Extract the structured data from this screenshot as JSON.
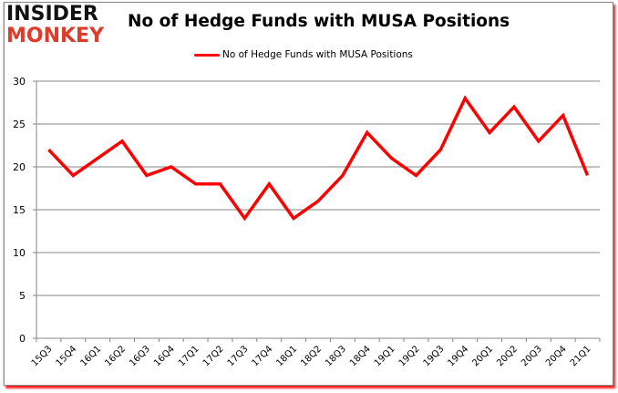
{
  "brand": {
    "line1": "INSIDER",
    "line2": "MONKEY",
    "line1_color": "#111111",
    "line2_color": "#e03a28"
  },
  "header": {
    "title": "No of Hedge Funds with MUSA Positions"
  },
  "legend": {
    "label": "No of Hedge Funds with MUSA Positions",
    "color": "#ff0000"
  },
  "chart_data": {
    "type": "line",
    "title": "No of Hedge Funds with MUSA Positions",
    "xlabel": "",
    "ylabel": "",
    "ylim": [
      0,
      30
    ],
    "yticks": [
      0,
      5,
      10,
      15,
      20,
      25,
      30
    ],
    "grid": true,
    "legend_position": "top",
    "categories": [
      "15Q3",
      "15Q4",
      "16Q1",
      "16Q2",
      "16Q3",
      "16Q4",
      "17Q1",
      "17Q2",
      "17Q3",
      "17Q4",
      "18Q1",
      "18Q2",
      "18Q3",
      "18Q4",
      "19Q1",
      "19Q2",
      "19Q3",
      "19Q4",
      "20Q1",
      "20Q2",
      "20Q3",
      "20Q4",
      "21Q1"
    ],
    "series": [
      {
        "name": "No of Hedge Funds with MUSA Positions",
        "color": "#ff0000",
        "values": [
          22,
          19,
          21,
          23,
          19,
          20,
          18,
          18,
          14,
          18,
          14,
          16,
          19,
          24,
          21,
          19,
          22,
          28,
          24,
          27,
          23,
          26,
          19
        ]
      }
    ]
  }
}
